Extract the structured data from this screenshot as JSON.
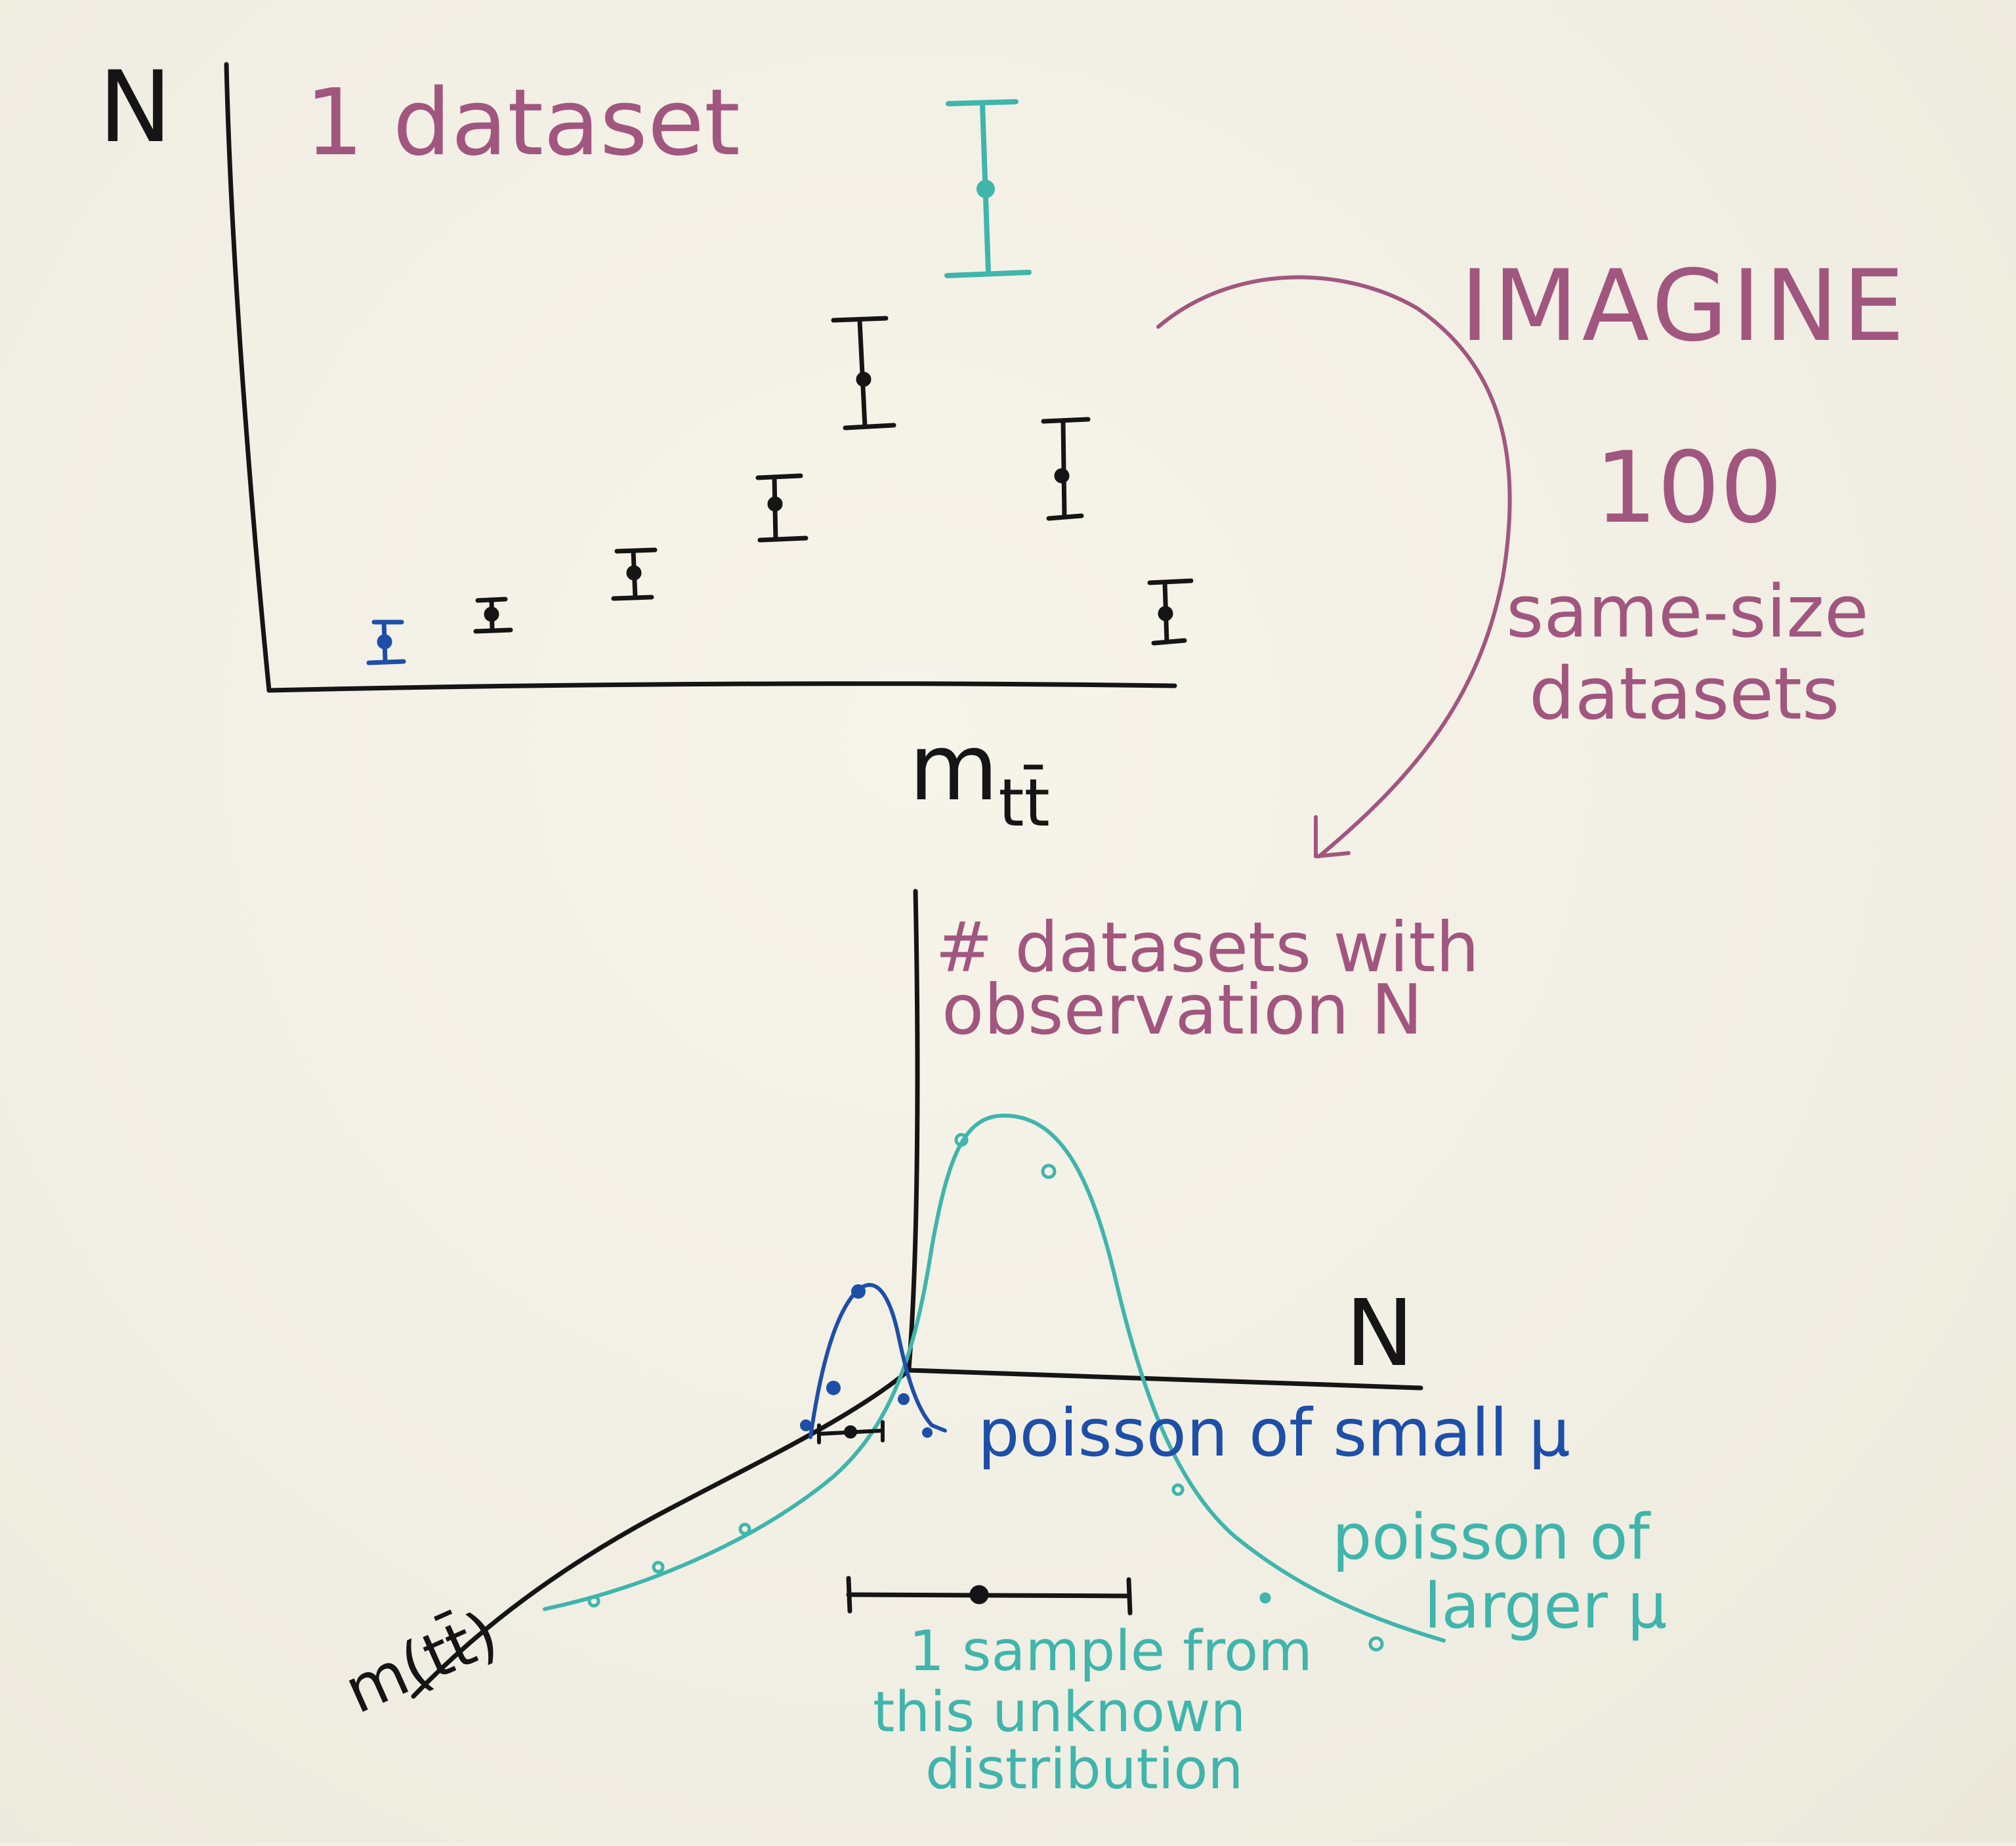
{
  "top_plot": {
    "y_label": "N",
    "title": "1 dataset",
    "x_label": "m",
    "x_label_subscript": "tt̄"
  },
  "imagine_note": {
    "line1": "IMAGINE",
    "line2": "100",
    "line3": "same-size",
    "line4": "datasets"
  },
  "bottom_plot": {
    "y_label_line1": "# datasets with",
    "y_label_line2": "observation N",
    "x_label": "N",
    "depth_axis_label": "m(tt̄)"
  },
  "annotations": {
    "small_mu": "poisson of small μ",
    "larger_mu_line1": "poisson of",
    "larger_mu_line2": "larger μ",
    "sample_line1": "1 sample from",
    "sample_line2": "this unknown",
    "sample_line3": "distribution"
  },
  "colors": {
    "ink_black": "#151515",
    "ink_teal": "#3fb5ac",
    "ink_blue": "#1e4fa8",
    "ink_purple": "#a1567f",
    "board": "#f2efe4"
  }
}
